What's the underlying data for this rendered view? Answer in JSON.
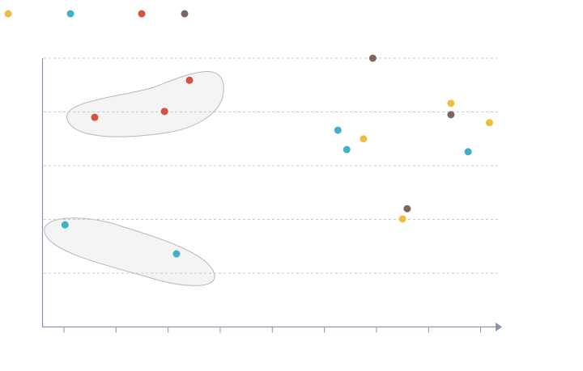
{
  "chart_data": {
    "type": "scatter",
    "xlim": [
      0.58,
      9.38
    ],
    "xticks": [
      1,
      2,
      3,
      4,
      5,
      6,
      7,
      8,
      9
    ],
    "ylim": [
      0,
      5
    ],
    "yticks": [
      1,
      2,
      3,
      4,
      5
    ],
    "grid": true,
    "series": [
      {
        "color": "#f0bc42",
        "x": [
          8.43,
          9.17,
          6.75,
          7.5
        ],
        "values": [
          4.16,
          3.8,
          3.5,
          2.01
        ]
      },
      {
        "color": "#3fb2c8",
        "x": [
          1.02,
          3.16,
          6.26,
          6.43,
          8.76
        ],
        "values": [
          1.9,
          1.36,
          3.66,
          3.3,
          3.26
        ]
      },
      {
        "color": "#d9513f",
        "x": [
          1.59,
          2.93,
          3.41
        ],
        "values": [
          3.9,
          4.01,
          4.59
        ]
      },
      {
        "color": "#7d6661",
        "x": [
          6.93,
          8.43,
          7.59
        ],
        "values": [
          5.0,
          3.95,
          2.2
        ]
      }
    ]
  }
}
